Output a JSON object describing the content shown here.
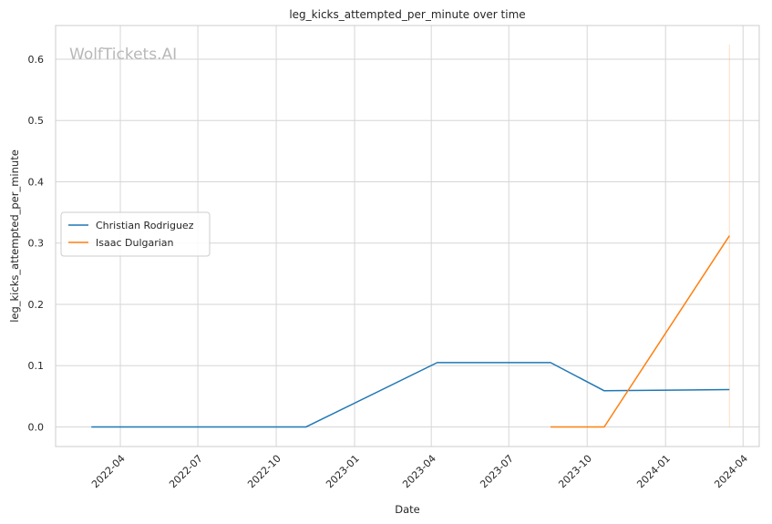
{
  "chart_data": {
    "type": "line",
    "title": "leg_kicks_attempted_per_minute over time",
    "xlabel": "Date",
    "ylabel": "leg_kicks_attempted_per_minute",
    "watermark": "WolfTickets.AI",
    "x_type": "date",
    "xlim": [
      "2022-01-15",
      "2024-04-20"
    ],
    "ylim": [
      -0.032,
      0.655
    ],
    "x_ticks": [
      "2022-04-01",
      "2022-07-01",
      "2022-10-01",
      "2023-01-01",
      "2023-04-01",
      "2023-07-01",
      "2023-10-01",
      "2024-01-01",
      "2024-04-01"
    ],
    "x_tick_labels": [
      "2022-04",
      "2022-07",
      "2022-10",
      "2023-01",
      "2023-04",
      "2023-07",
      "2023-10",
      "2024-01",
      "2024-04"
    ],
    "y_ticks": [
      0.0,
      0.1,
      0.2,
      0.3,
      0.4,
      0.5,
      0.6
    ],
    "y_tick_labels": [
      "0.0",
      "0.1",
      "0.2",
      "0.3",
      "0.4",
      "0.5",
      "0.6"
    ],
    "grid": true,
    "legend_position": "center-left",
    "series": [
      {
        "name": "Christian Rodriguez",
        "color": "#1f77b4",
        "points": [
          {
            "x": "2022-02-26",
            "y": 0.0
          },
          {
            "x": "2022-11-05",
            "y": 0.0
          },
          {
            "x": "2023-04-08",
            "y": 0.105
          },
          {
            "x": "2023-08-19",
            "y": 0.105
          },
          {
            "x": "2023-10-21",
            "y": 0.059
          },
          {
            "x": "2024-03-16",
            "y": 0.061
          }
        ]
      },
      {
        "name": "Isaac Dulgarian",
        "color": "#ff7f0e",
        "points": [
          {
            "x": "2023-08-19",
            "y": 0.0
          },
          {
            "x": "2023-10-21",
            "y": 0.0
          },
          {
            "x": "2024-03-16",
            "y": 0.312
          }
        ]
      }
    ],
    "band": {
      "color": "#ff7f0e",
      "x": "2024-03-16",
      "y_range": [
        0.0,
        0.624
      ]
    }
  }
}
